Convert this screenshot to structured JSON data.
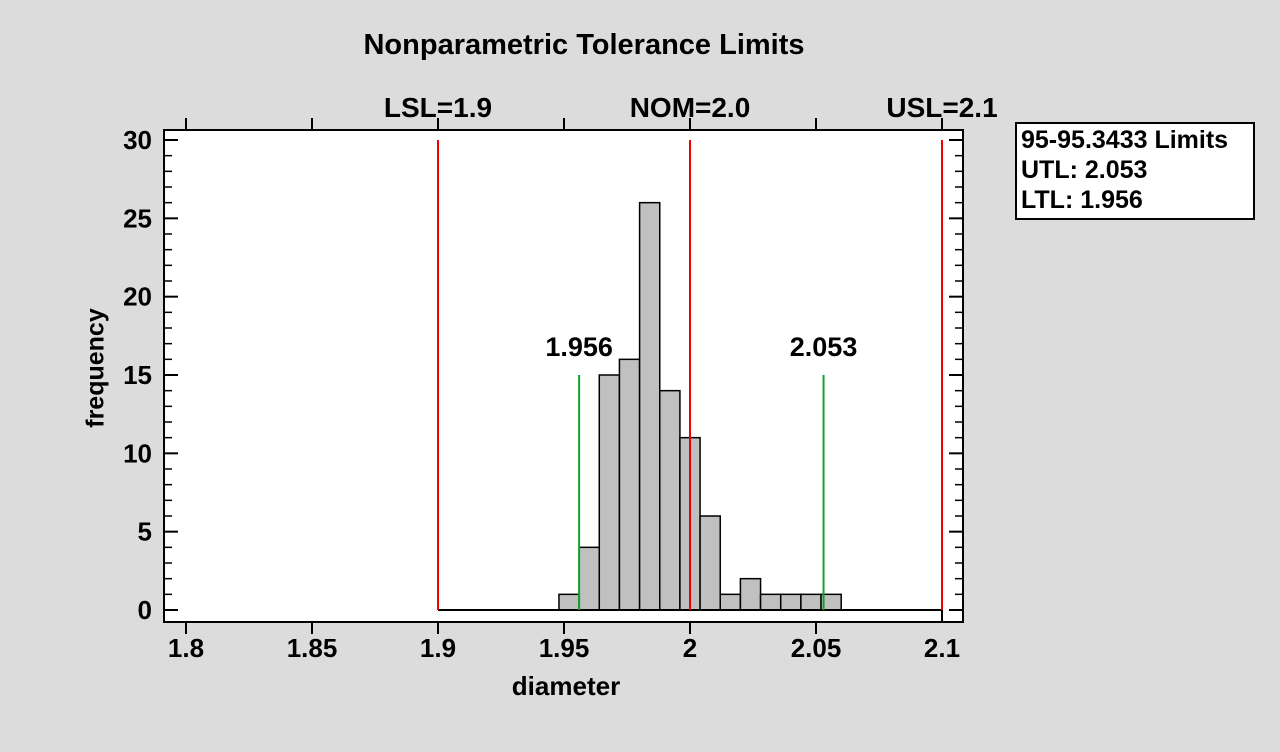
{
  "window": {
    "background": "#dcdcdc"
  },
  "chart_data": {
    "type": "bar",
    "subtype": "histogram",
    "title": "Nonparametric Tolerance Limits",
    "xlabel": "diameter",
    "ylabel": "frequency",
    "xlim": [
      1.8,
      2.1
    ],
    "ylim": [
      0,
      30
    ],
    "x_ticks": [
      1.8,
      1.85,
      1.9,
      1.95,
      2.0,
      2.05,
      2.1
    ],
    "x_tick_labels": [
      "1.8",
      "1.85",
      "1.9",
      "1.95",
      "2",
      "2.05",
      "2.1"
    ],
    "y_major_ticks": [
      0,
      5,
      10,
      15,
      20,
      25,
      30
    ],
    "y_tick_labels": [
      "0",
      "5",
      "10",
      "15",
      "20",
      "25",
      "30"
    ],
    "y_minor_step": 1,
    "grid": "off",
    "plot_background": "#ffffff",
    "bar_fill": "#c0c0c0",
    "bar_stroke": "#000000",
    "bins": {
      "start": 1.948,
      "width": 0.008,
      "frequencies": [
        1,
        4,
        15,
        16,
        26,
        14,
        11,
        6,
        1,
        2,
        1,
        1,
        1,
        1
      ],
      "n_total": 100
    },
    "spec_limits": [
      {
        "label": "LSL=1.9",
        "value": 1.9,
        "color": "#ee0000",
        "line_top": 30
      },
      {
        "label": "NOM=2.0",
        "value": 2.0,
        "color": "#ee0000",
        "line_top": 30
      },
      {
        "label": "USL=2.1",
        "value": 2.1,
        "color": "#ee0000",
        "line_top": 30
      }
    ],
    "tolerance_limits": [
      {
        "label": "1.956",
        "value": 1.956,
        "color": "#0fa32a",
        "line_top": 15
      },
      {
        "label": "2.053",
        "value": 2.053,
        "color": "#0fa32a",
        "line_top": 15
      }
    ],
    "baseline": {
      "from": 1.9,
      "to": 2.1,
      "y": 0
    },
    "legend": {
      "lines": [
        "95-95.3433 Limits",
        "UTL: 2.053",
        "LTL: 1.956"
      ],
      "position": "top-right"
    }
  }
}
